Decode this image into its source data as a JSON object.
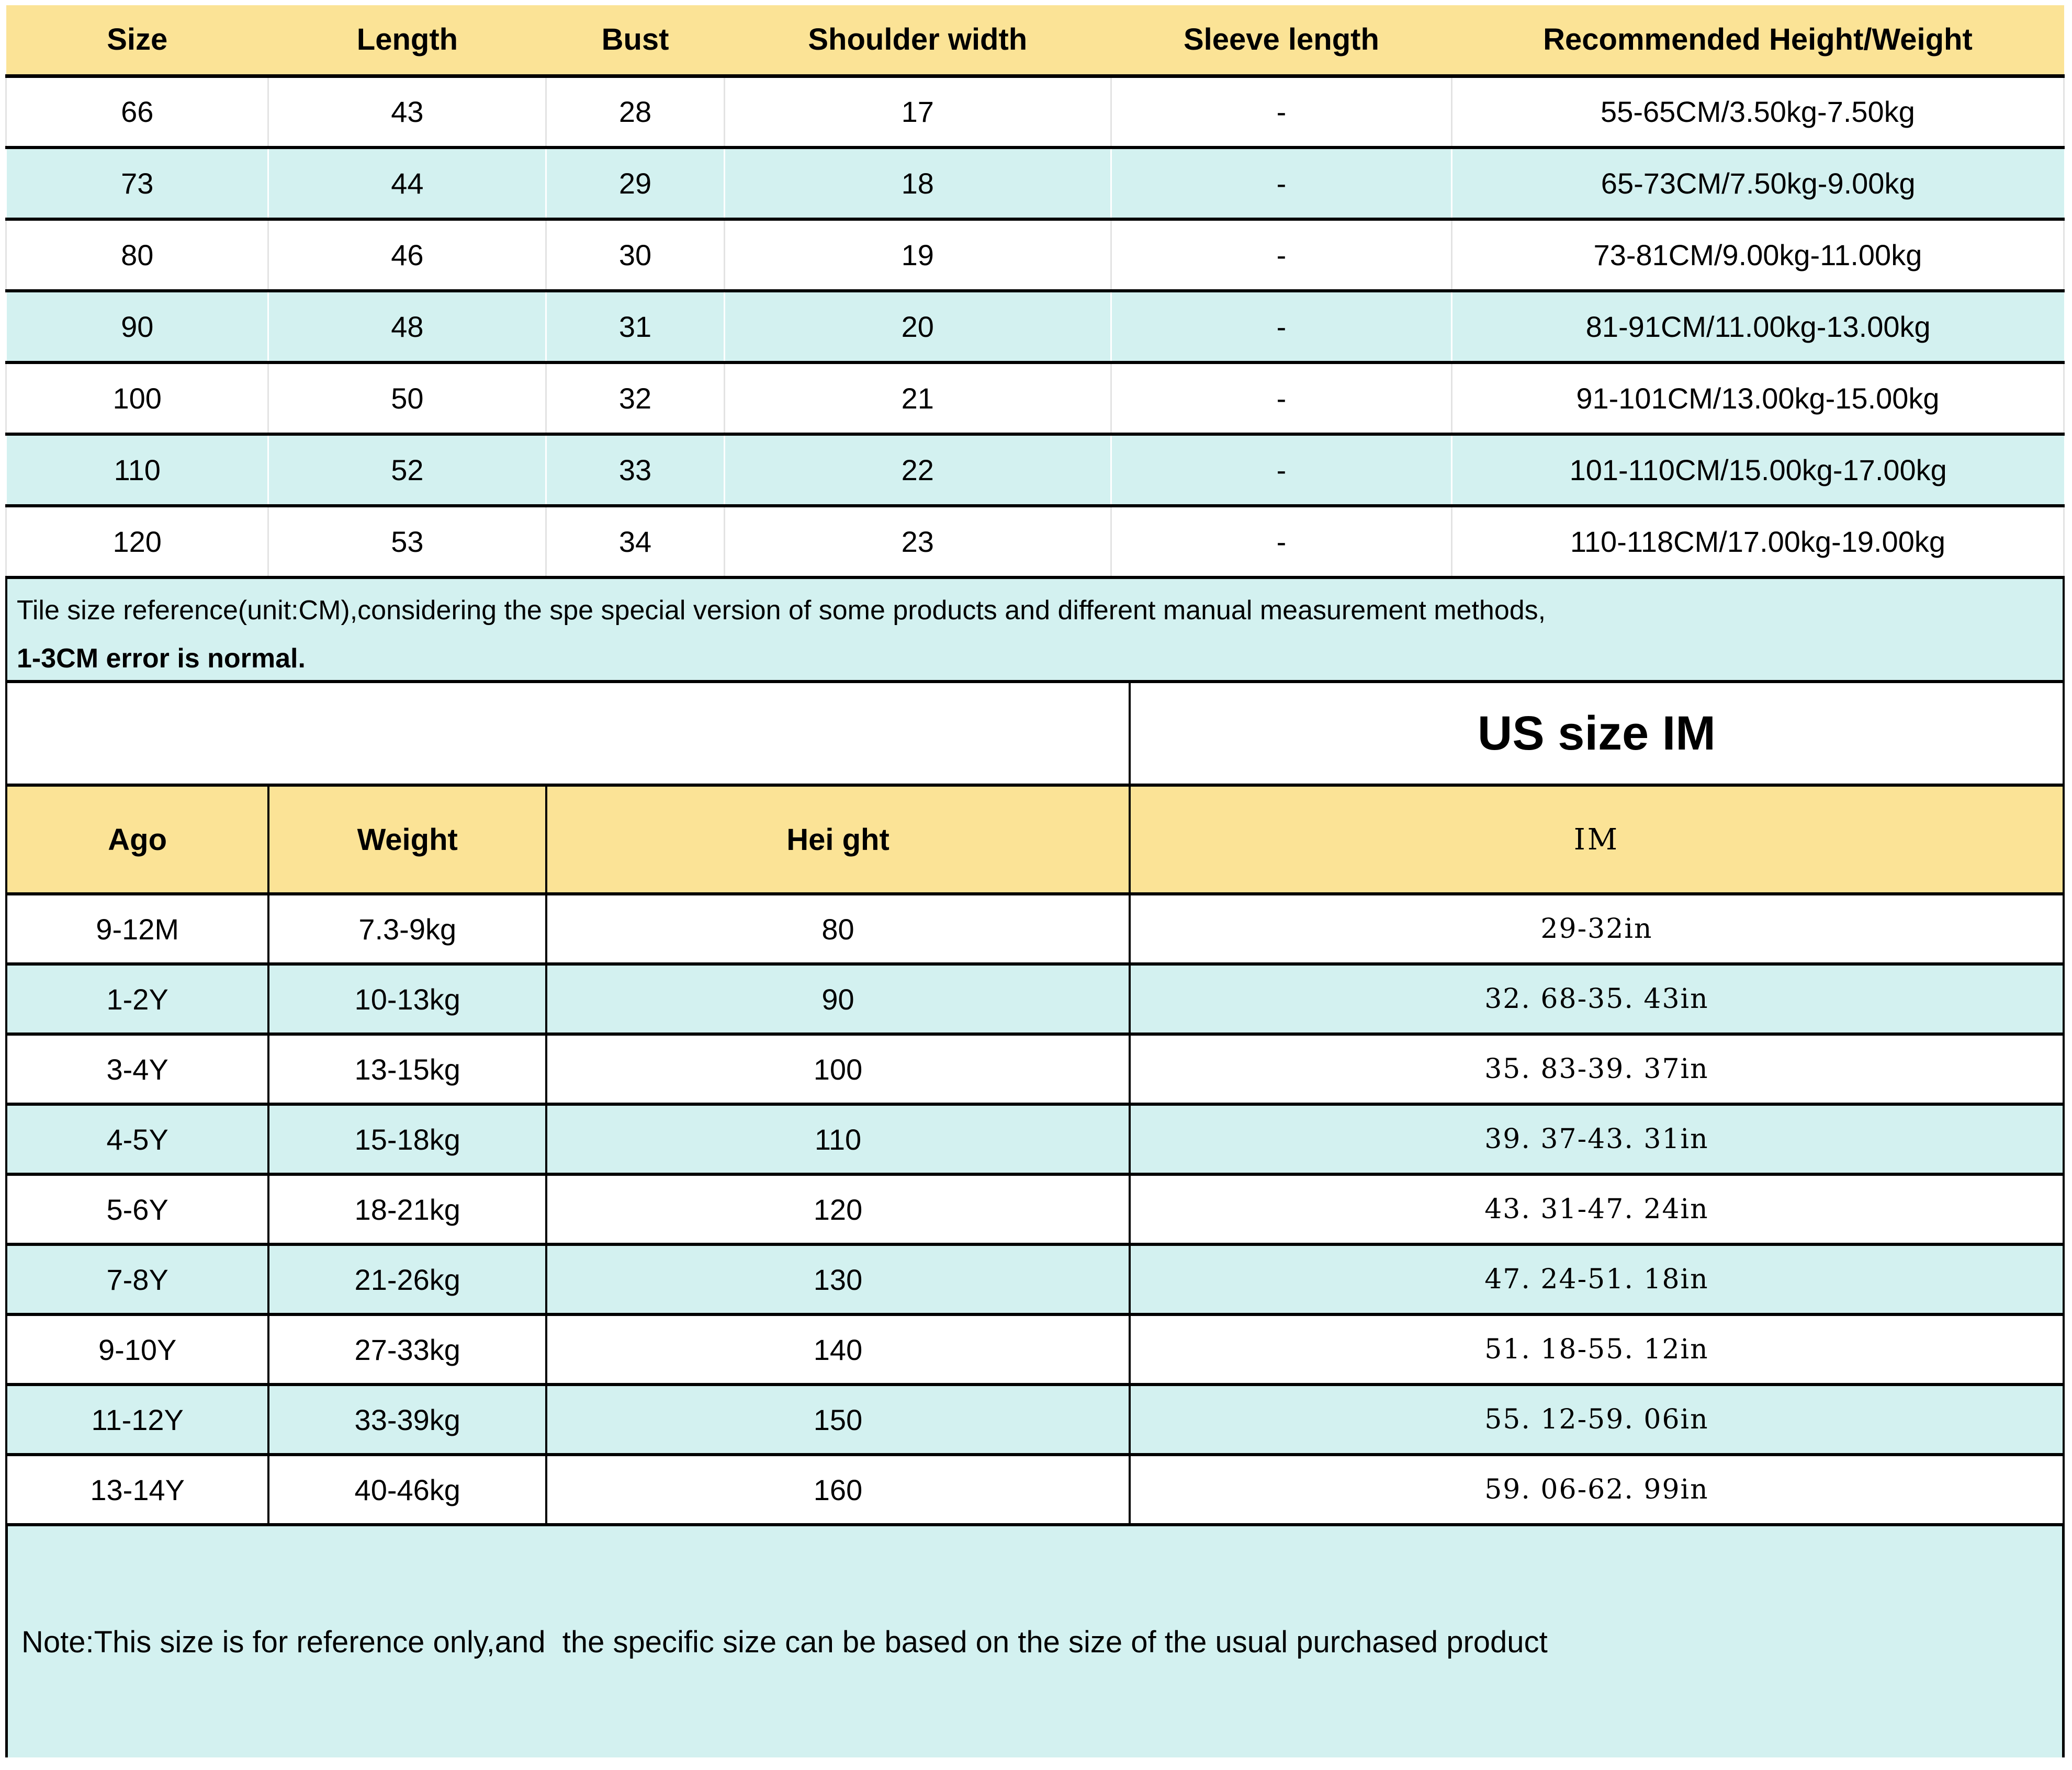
{
  "colors": {
    "header_yellow": "#FBE396",
    "row_cyan": "#D3F1F0",
    "gridline_gray": "#E3E3E3",
    "border_black": "#000000"
  },
  "size_table": {
    "headers": [
      "Size",
      "Length",
      "Bust",
      "Shoulder width",
      "Sleeve length",
      "Recommended Height/Weight"
    ],
    "rows": [
      [
        "66",
        "43",
        "28",
        "17",
        "-",
        "55-65CM/3.50kg-7.50kg"
      ],
      [
        "73",
        "44",
        "29",
        "18",
        "-",
        "65-73CM/7.50kg-9.00kg"
      ],
      [
        "80",
        "46",
        "30",
        "19",
        "-",
        "73-81CM/9.00kg-11.00kg"
      ],
      [
        "90",
        "48",
        "31",
        "20",
        "-",
        "81-91CM/11.00kg-13.00kg"
      ],
      [
        "100",
        "50",
        "32",
        "21",
        "-",
        "91-101CM/13.00kg-15.00kg"
      ],
      [
        "110",
        "52",
        "33",
        "22",
        "-",
        "101-110CM/15.00kg-17.00kg"
      ],
      [
        "120",
        "53",
        "34",
        "23",
        "-",
        "110-118CM/17.00kg-19.00kg"
      ]
    ]
  },
  "measure_note": {
    "line1": "Tile size reference(unit:CM),considering the spe special version of some products and different manual measurement methods,",
    "line2": "1-3CM error is normal."
  },
  "us_size_table": {
    "title": "US size IM",
    "headers": [
      "Ago",
      "Weight",
      "Hei ght",
      "IM"
    ],
    "rows": [
      [
        "9-12M",
        "7.3-9kg",
        "80",
        "29-32in"
      ],
      [
        "1-2Y",
        "10-13kg",
        "90",
        "32. 68-35. 43in"
      ],
      [
        "3-4Y",
        "13-15kg",
        "100",
        "35. 83-39. 37in"
      ],
      [
        "4-5Y",
        "15-18kg",
        "110",
        "39. 37-43. 31in"
      ],
      [
        "5-6Y",
        "18-21kg",
        "120",
        "43. 31-47. 24in"
      ],
      [
        "7-8Y",
        "21-26kg",
        "130",
        "47. 24-51. 18in"
      ],
      [
        "9-10Y",
        "27-33kg",
        "140",
        "51. 18-55. 12in"
      ],
      [
        "11-12Y",
        "33-39kg",
        "150",
        "55. 12-59. 06in"
      ],
      [
        "13-14Y",
        "40-46kg",
        "160",
        "59. 06-62. 99in"
      ]
    ]
  },
  "footer_note": "Note:This size is for reference only,and  the specific size can be based on the size of the usual purchased product"
}
